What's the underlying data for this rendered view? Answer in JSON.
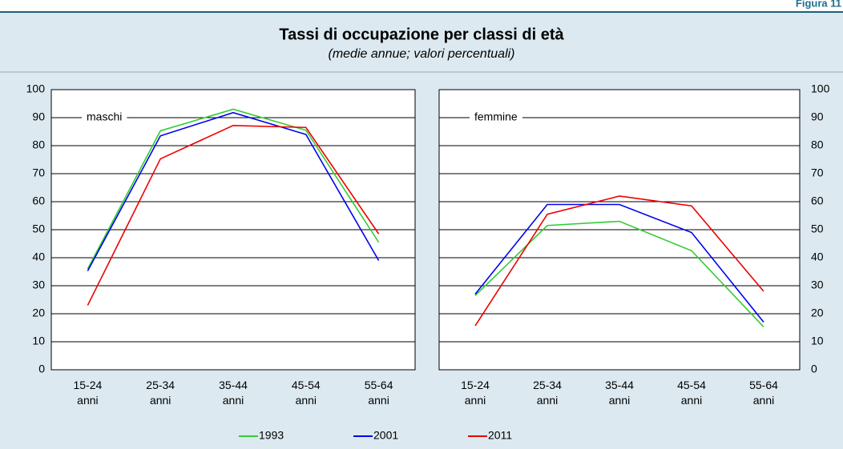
{
  "figure_label": "Figura 11",
  "title": "Tassi di occupazione per classi di età",
  "subtitle": "(medie annue; valori percentuali)",
  "chart_data": [
    {
      "type": "line",
      "label": "maschi",
      "yaxis_side": "left",
      "categories": [
        "15-24 anni",
        "25-34 anni",
        "35-44 anni",
        "45-54 anni",
        "55-64 anni"
      ],
      "series": [
        {
          "name": "1993",
          "color": "#33cc33",
          "values": [
            36,
            85.3,
            93,
            85.5,
            45.5
          ]
        },
        {
          "name": "2001",
          "color": "#0000ee",
          "values": [
            35.3,
            83.5,
            91.8,
            84,
            39
          ]
        },
        {
          "name": "2011",
          "color": "#ee0000",
          "values": [
            23,
            75.3,
            87.2,
            86.5,
            48.5
          ]
        }
      ],
      "ylim": [
        0,
        100
      ],
      "yticks": [
        0,
        10,
        20,
        30,
        40,
        50,
        60,
        70,
        80,
        90,
        100
      ],
      "grid": true
    },
    {
      "type": "line",
      "label": "femmine",
      "yaxis_side": "right",
      "categories": [
        "15-24 anni",
        "25-34 anni",
        "35-44 anni",
        "45-54 anni",
        "55-64 anni"
      ],
      "series": [
        {
          "color": "#33cc33",
          "values": [
            26.5,
            51.5,
            53,
            42.5,
            15.3
          ]
        },
        {
          "color": "#0000ee",
          "values": [
            27,
            59,
            59,
            49,
            17
          ]
        },
        {
          "color": "#ee0000",
          "values": [
            15.7,
            55.5,
            62,
            58.5,
            28
          ]
        }
      ],
      "ylim": [
        0,
        100
      ],
      "yticks": [
        0,
        10,
        20,
        30,
        40,
        50,
        60,
        70,
        80,
        90,
        100
      ],
      "grid": true
    }
  ]
}
